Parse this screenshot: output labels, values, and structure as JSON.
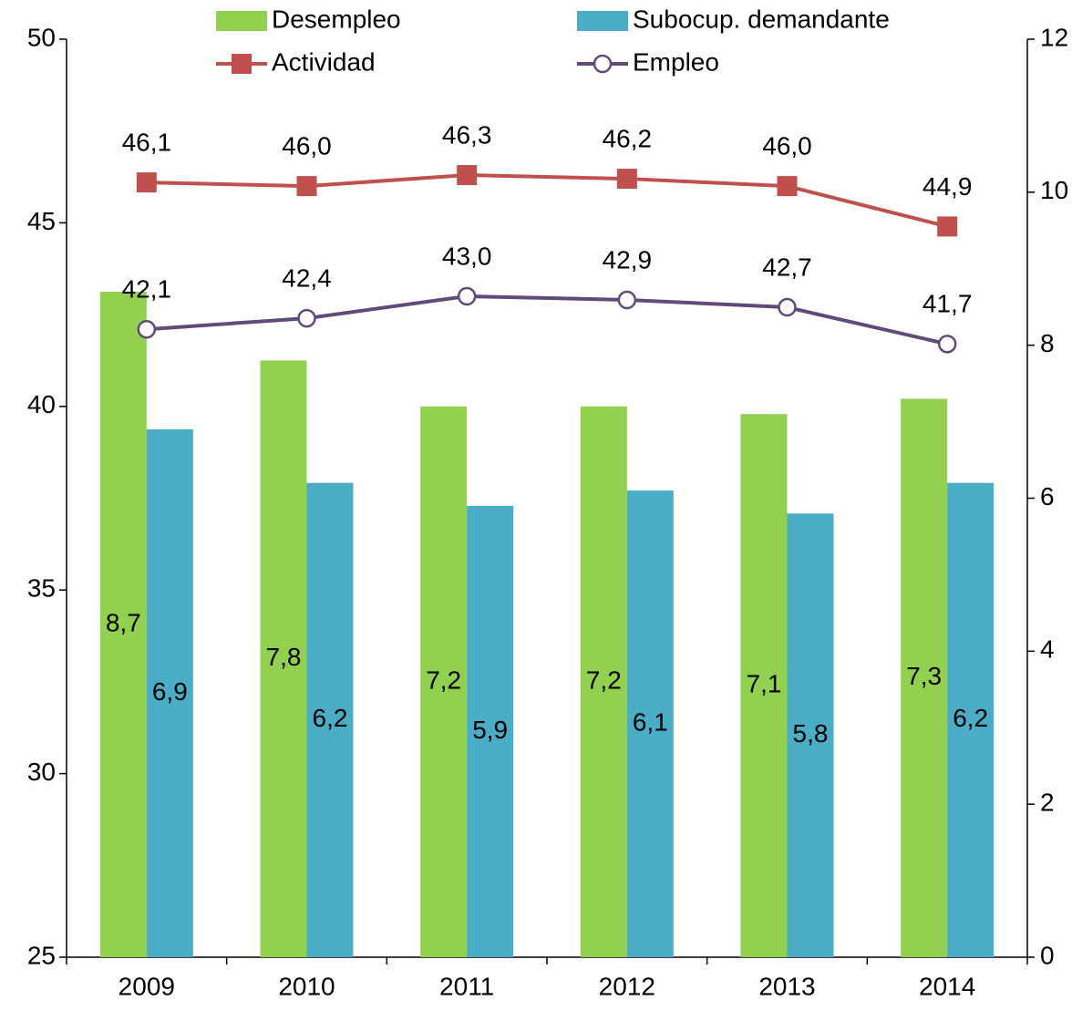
{
  "chart_data": {
    "type": "bar",
    "categories": [
      "2009",
      "2010",
      "2011",
      "2012",
      "2013",
      "2014"
    ],
    "ylim": [
      25,
      50
    ],
    "yticks": [
      25,
      30,
      35,
      40,
      45,
      50
    ],
    "y2lim": [
      0,
      12
    ],
    "y2ticks": [
      0,
      2,
      4,
      6,
      8,
      10,
      12
    ],
    "series": [
      {
        "name": "Desempleo",
        "type": "bar",
        "axis": "y2",
        "color": "#92d050",
        "values": [
          8.7,
          7.8,
          7.2,
          7.2,
          7.1,
          7.3
        ],
        "value_labels": [
          "8,7",
          "7,8",
          "7,2",
          "7,2",
          "7,1",
          "7,3"
        ]
      },
      {
        "name": "Subocup. demandante",
        "type": "bar",
        "axis": "y2",
        "color": "#4bacc6",
        "values": [
          6.9,
          6.2,
          5.9,
          6.1,
          5.8,
          6.2
        ],
        "value_labels": [
          "6,9",
          "6,2",
          "5,9",
          "6,1",
          "5,8",
          "6,2"
        ]
      },
      {
        "name": "Actividad",
        "type": "line",
        "color": "#c0504d",
        "marker": "square",
        "values": [
          46.1,
          46.0,
          46.3,
          46.2,
          46.0,
          44.9
        ],
        "value_labels": [
          "46,1",
          "46,0",
          "46,3",
          "46,2",
          "46,0",
          "44,9"
        ]
      },
      {
        "name": "Empleo",
        "type": "line",
        "color": "#604a7b",
        "marker": "circle",
        "values": [
          42.1,
          42.4,
          43.0,
          42.9,
          42.7,
          41.7
        ],
        "value_labels": [
          "42,1",
          "42,4",
          "43,0",
          "42,9",
          "42,7",
          "41,7"
        ]
      }
    ]
  }
}
